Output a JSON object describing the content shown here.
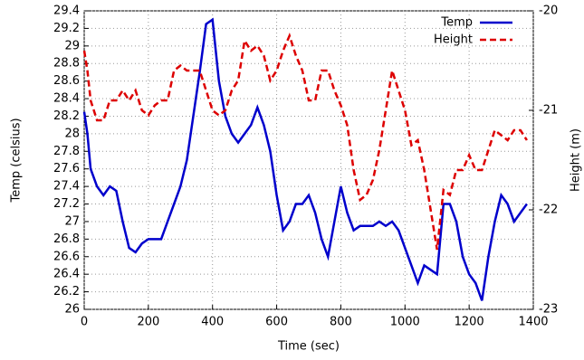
{
  "chart_data": {
    "type": "line",
    "xlabel": "Time (sec)",
    "ylabel": "Temp (celsius)",
    "y2label": "Height (m)",
    "x": [
      0,
      10,
      20,
      40,
      60,
      80,
      100,
      120,
      140,
      160,
      180,
      200,
      220,
      240,
      260,
      280,
      300,
      320,
      340,
      360,
      380,
      400,
      420,
      440,
      460,
      480,
      500,
      520,
      540,
      560,
      580,
      600,
      620,
      640,
      660,
      680,
      700,
      720,
      740,
      760,
      780,
      800,
      820,
      840,
      860,
      880,
      900,
      920,
      940,
      960,
      980,
      1000,
      1020,
      1040,
      1060,
      1080,
      1100,
      1120,
      1140,
      1160,
      1180,
      1200,
      1220,
      1240,
      1260,
      1280,
      1300,
      1320,
      1340,
      1360,
      1380
    ],
    "series": [
      {
        "name": "Temp",
        "color": "#0000cc",
        "dash": false,
        "values": [
          28.25,
          28.0,
          27.6,
          27.4,
          27.3,
          27.4,
          27.35,
          27.0,
          26.7,
          26.65,
          26.75,
          26.8,
          26.8,
          26.8,
          27.0,
          27.2,
          27.4,
          27.7,
          28.2,
          28.7,
          29.25,
          29.3,
          28.6,
          28.2,
          28.0,
          27.9,
          28.0,
          28.1,
          28.3,
          28.1,
          27.8,
          27.3,
          26.9,
          27.0,
          27.2,
          27.2,
          27.3,
          27.1,
          26.8,
          26.6,
          27.0,
          27.4,
          27.1,
          26.9,
          26.95,
          26.95,
          26.95,
          27.0,
          26.95,
          27.0,
          26.9,
          26.7,
          26.5,
          26.3,
          26.5,
          26.45,
          26.4,
          27.2,
          27.2,
          27.0,
          26.6,
          26.4,
          26.3,
          26.1,
          26.6,
          27.0,
          27.3,
          27.2,
          27.0,
          27.1,
          27.2
        ]
      },
      {
        "name": "Height",
        "color": "#dd0000",
        "dash": true,
        "axis": "y2",
        "values": [
          -20.4,
          -20.6,
          -20.9,
          -21.1,
          -21.1,
          -20.9,
          -20.9,
          -20.8,
          -20.9,
          -20.8,
          -21.0,
          -21.05,
          -20.95,
          -20.9,
          -20.9,
          -20.6,
          -20.55,
          -20.6,
          -20.6,
          -20.6,
          -20.8,
          -21.0,
          -21.05,
          -21.0,
          -20.8,
          -20.7,
          -20.3,
          -20.4,
          -20.35,
          -20.45,
          -20.7,
          -20.6,
          -20.4,
          -20.25,
          -20.45,
          -20.6,
          -20.9,
          -20.9,
          -20.6,
          -20.6,
          -20.8,
          -20.95,
          -21.15,
          -21.6,
          -21.9,
          -21.85,
          -21.7,
          -21.4,
          -21.0,
          -20.6,
          -20.8,
          -21.0,
          -21.35,
          -21.3,
          -21.6,
          -22.0,
          -22.4,
          -21.8,
          -21.85,
          -21.6,
          -21.6,
          -21.45,
          -21.6,
          -21.6,
          -21.4,
          -21.2,
          -21.25,
          -21.3,
          -21.2,
          -21.2,
          -21.3
        ]
      }
    ],
    "xlim": [
      0,
      1400
    ],
    "xticks": [
      0,
      200,
      400,
      600,
      800,
      1000,
      1200,
      1400
    ],
    "ylim": [
      26,
      29.4
    ],
    "yticks": [
      26,
      26.2,
      26.4,
      26.6,
      26.8,
      27,
      27.2,
      27.4,
      27.6,
      27.8,
      28,
      28.2,
      28.4,
      28.6,
      28.8,
      29,
      29.2,
      29.4
    ],
    "y2lim": [
      -23,
      -20
    ],
    "y2ticks": [
      -23,
      -22,
      -21,
      -20
    ],
    "grid": true,
    "legend": "top-right"
  }
}
